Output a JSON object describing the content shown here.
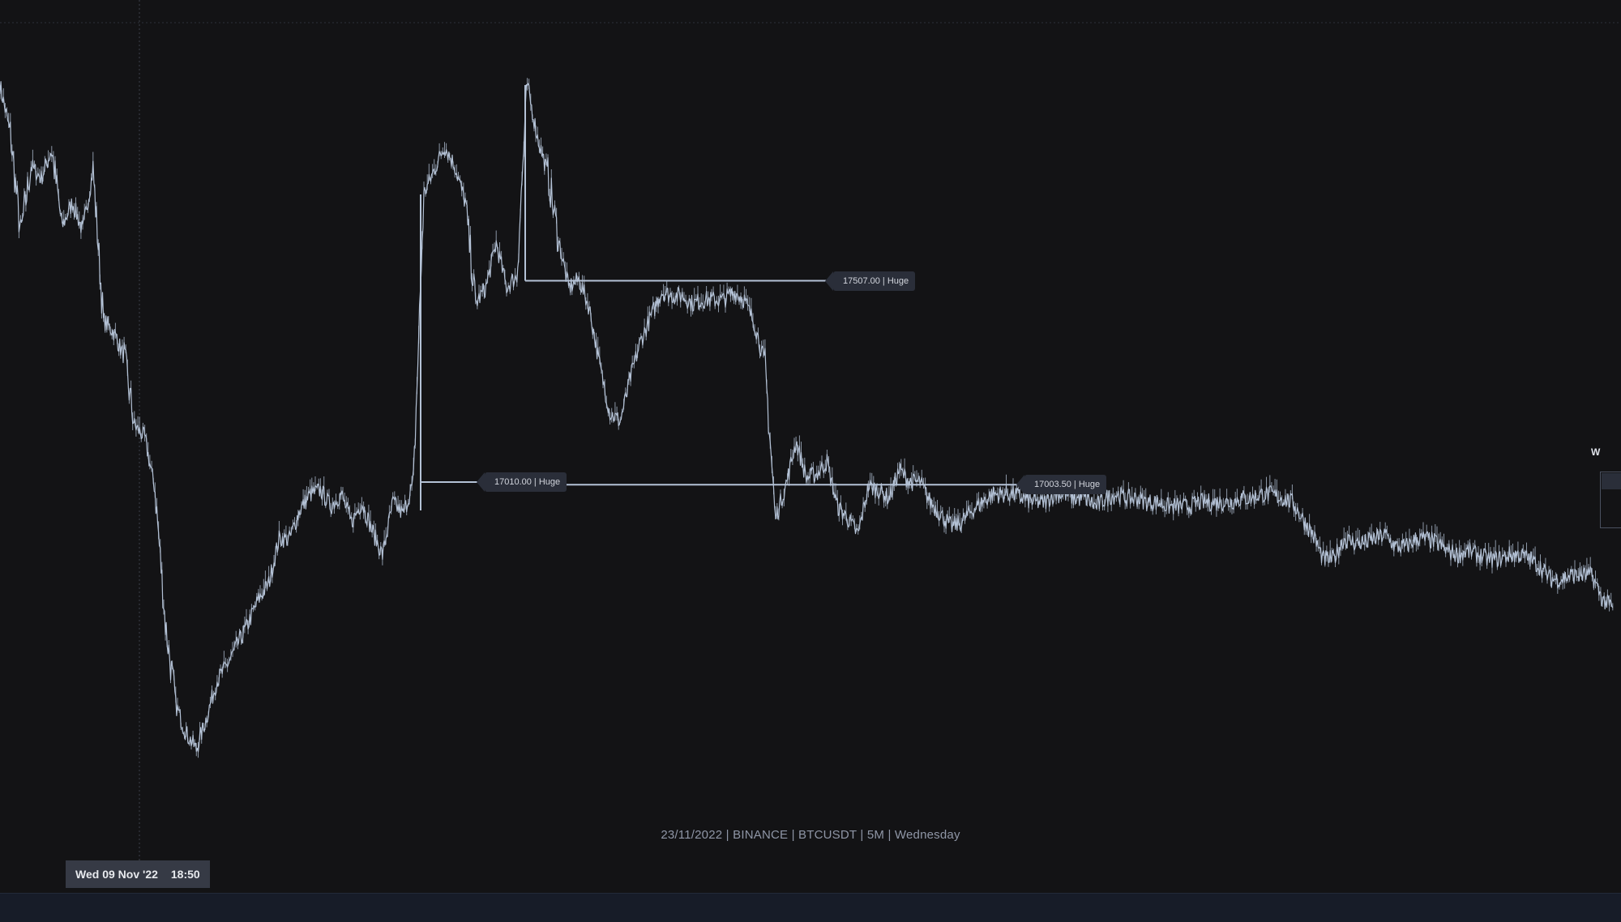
{
  "watermark": "23/11/2022 | BINANCE | BTCUSDT | 5M | Wednesday",
  "crosshair": {
    "date": "Wed 09 Nov '22",
    "time": "18:50"
  },
  "marker": "W",
  "levels": [
    {
      "label": "17507.00 | Huge",
      "price": 17507.0
    },
    {
      "label": "17010.00 | Huge",
      "price": 17010.0
    },
    {
      "label": "17003.50 | Huge",
      "price": 17003.5
    }
  ],
  "colors": {
    "background": "#131315",
    "price_line": "#b4c2d6",
    "level_line": "#b4c2d6",
    "tag_background": "#2a2e39",
    "bottom_bar": "#171c28"
  },
  "chart_data": {
    "type": "line",
    "symbol": "BTCUSDT",
    "exchange": "BINANCE",
    "timeframe": "5M",
    "x": [
      0,
      10,
      20,
      30,
      40,
      50,
      60,
      70,
      80,
      90,
      100,
      110,
      120,
      130,
      140,
      150,
      160,
      170,
      180,
      190,
      200,
      210,
      220,
      230,
      240,
      250,
      260,
      270,
      280,
      290,
      300,
      310,
      320,
      330,
      340,
      350,
      360,
      370,
      380,
      390,
      400,
      410,
      420,
      430,
      440,
      450,
      460,
      470,
      480,
      490,
      500,
      510,
      520,
      530,
      540,
      550,
      560,
      570,
      580,
      590,
      600,
      610,
      620,
      630,
      640,
      650,
      660,
      670,
      680,
      690,
      700,
      710,
      720,
      730,
      740,
      750,
      760,
      770,
      780,
      790,
      800,
      810,
      820,
      830,
      840,
      850,
      860,
      870,
      880,
      890,
      900,
      910,
      920,
      930,
      940,
      950,
      960,
      970,
      980,
      990,
      1000,
      1010,
      1020,
      1030,
      1040,
      1050,
      1060,
      1070,
      1080,
      1090,
      1100,
      1110,
      1120,
      1130,
      1140,
      1150,
      1160,
      1170,
      1180,
      1190,
      1200,
      1210,
      1220,
      1230,
      1240,
      1250,
      1260,
      1270,
      1280,
      1290,
      1300,
      1310,
      1320,
      1330,
      1340,
      1350,
      1360,
      1370,
      1380,
      1390,
      1400,
      1410,
      1420,
      1430,
      1440,
      1450,
      1460,
      1470,
      1480,
      1490,
      1500,
      1510,
      1520,
      1530,
      1540,
      1550,
      1560
    ],
    "y": [
      17990,
      17870,
      17620,
      17790,
      17760,
      17830,
      17640,
      17700,
      17630,
      17780,
      17410,
      17380,
      17320,
      17150,
      17120,
      16990,
      16660,
      16460,
      16390,
      16350,
      16430,
      16520,
      16560,
      16610,
      16660,
      16720,
      16760,
      16870,
      16870,
      16940,
      16980,
      16990,
      16950,
      16980,
      16910,
      16960,
      16890,
      16830,
      16960,
      16930,
      17010,
      17720,
      17780,
      17840,
      17790,
      17700,
      17450,
      17490,
      17600,
      17490,
      17520,
      17990,
      17860,
      17770,
      17610,
      17490,
      17510,
      17440,
      17300,
      17180,
      17160,
      17270,
      17360,
      17420,
      17480,
      17470,
      17470,
      17450,
      17460,
      17460,
      17460,
      17480,
      17460,
      17400,
      17300,
      16920,
      17000,
      17110,
      17020,
      17030,
      17060,
      16950,
      16920,
      16880,
      17000,
      16990,
      16970,
      17040,
      17010,
      17010,
      16960,
      16930,
      16900,
      16910,
      16940,
      16960,
      16980,
      16980,
      16980,
      16970,
      16960,
      16960,
      16980,
      16980,
      16970,
      16970,
      16950,
      16970,
      16980,
      16970,
      16970,
      16960,
      16960,
      16950,
      16950,
      16950,
      16960,
      16960,
      16960,
      16960,
      16970,
      16970,
      16980,
      16980,
      16970,
      16960,
      16920,
      16880,
      16820,
      16820,
      16870,
      16860,
      16860,
      16870,
      16880,
      16850,
      16850,
      16870,
      16870,
      16860,
      16840,
      16830,
      16840,
      16830,
      16820,
      16820,
      16830,
      16830,
      16820,
      16800,
      16770,
      16770,
      16780,
      16780,
      16780,
      16720,
      16700
    ],
    "ylim": [
      16200,
      18200
    ],
    "xlim": [
      0,
      1568
    ],
    "levels": [
      17507.0,
      17010.0,
      17003.5
    ],
    "grid": false,
    "legend": "none"
  }
}
